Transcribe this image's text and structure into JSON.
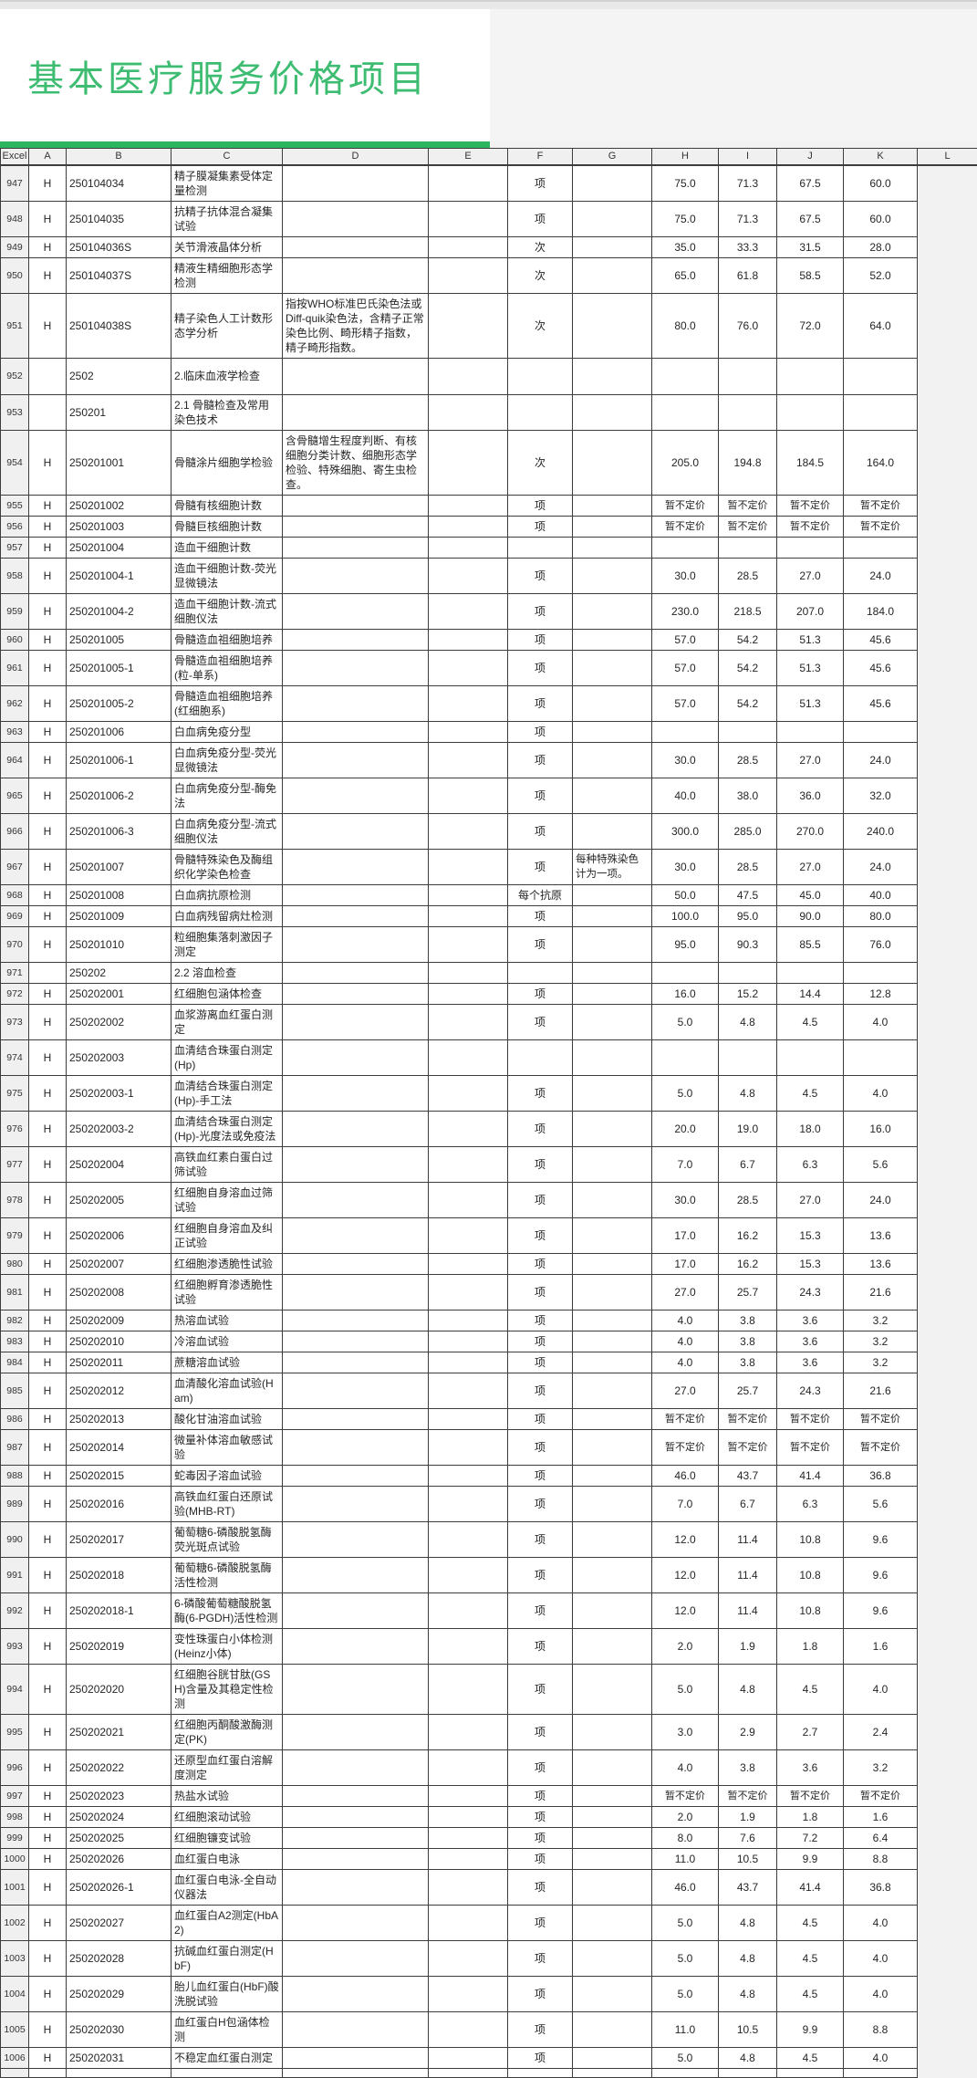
{
  "page": {
    "title": "基本医疗服务价格项目"
  },
  "table": {
    "columns": [
      "Excel",
      "A",
      "B",
      "C",
      "D",
      "E",
      "F",
      "G",
      "H",
      "I",
      "J",
      "K",
      "L"
    ],
    "row_fields_order": [
      "excel_row",
      "A",
      "B",
      "C",
      "D",
      "E",
      "F",
      "G",
      "H",
      "I",
      "J",
      "K"
    ],
    "unpriced_label": "暂不定价",
    "rows": [
      [
        "947",
        "H",
        "250104034",
        "精子膜凝集素受体定量检测",
        "",
        "",
        "项",
        "",
        "75.0",
        "71.3",
        "67.5",
        "60.0"
      ],
      [
        "948",
        "H",
        "250104035",
        "抗精子抗体混合凝集试验",
        "",
        "",
        "项",
        "",
        "75.0",
        "71.3",
        "67.5",
        "60.0"
      ],
      [
        "949",
        "H",
        "250104036S",
        "关节滑液晶体分析",
        "",
        "",
        "次",
        "",
        "35.0",
        "33.3",
        "31.5",
        "28.0"
      ],
      [
        "950",
        "H",
        "250104037S",
        "精液生精细胞形态学检测",
        "",
        "",
        "次",
        "",
        "65.0",
        "61.8",
        "58.5",
        "52.0"
      ],
      [
        "951",
        "H",
        "250104038S",
        "精子染色人工计数形态学分析",
        "指按WHO标准巴氏染色法或Diff-quik染色法，含精子正常染色比例、畸形精子指数，精子畸形指数。",
        "",
        "次",
        "",
        "80.0",
        "76.0",
        "72.0",
        "64.0"
      ],
      [
        "952",
        "",
        "2502",
        "2.临床血液学检查",
        "",
        "",
        "",
        "",
        "",
        "",
        "",
        ""
      ],
      [
        "953",
        "",
        "250201",
        "2.1 骨髓检查及常用染色技术",
        "",
        "",
        "",
        "",
        "",
        "",
        "",
        ""
      ],
      [
        "954",
        "H",
        "250201001",
        "骨髓涂片细胞学检验",
        "含骨髓增生程度判断、有核细胞分类计数、细胞形态学检验、特殊细胞、寄生虫检查。",
        "",
        "次",
        "",
        "205.0",
        "194.8",
        "184.5",
        "164.0"
      ],
      [
        "955",
        "H",
        "250201002",
        "骨髓有核细胞计数",
        "",
        "",
        "项",
        "",
        "暂不定价",
        "暂不定价",
        "暂不定价",
        "暂不定价"
      ],
      [
        "956",
        "H",
        "250201003",
        "骨髓巨核细胞计数",
        "",
        "",
        "项",
        "",
        "暂不定价",
        "暂不定价",
        "暂不定价",
        "暂不定价"
      ],
      [
        "957",
        "H",
        "250201004",
        "造血干细胞计数",
        "",
        "",
        "",
        "",
        "",
        "",
        "",
        ""
      ],
      [
        "958",
        "H",
        "250201004-1",
        "造血干细胞计数-荧光显微镜法",
        "",
        "",
        "项",
        "",
        "30.0",
        "28.5",
        "27.0",
        "24.0"
      ],
      [
        "959",
        "H",
        "250201004-2",
        "造血干细胞计数-流式细胞仪法",
        "",
        "",
        "项",
        "",
        "230.0",
        "218.5",
        "207.0",
        "184.0"
      ],
      [
        "960",
        "H",
        "250201005",
        "骨髓造血祖细胞培养",
        "",
        "",
        "项",
        "",
        "57.0",
        "54.2",
        "51.3",
        "45.6"
      ],
      [
        "961",
        "H",
        "250201005-1",
        "骨髓造血祖细胞培养(粒-单系)",
        "",
        "",
        "项",
        "",
        "57.0",
        "54.2",
        "51.3",
        "45.6"
      ],
      [
        "962",
        "H",
        "250201005-2",
        "骨髓造血祖细胞培养(红细胞系)",
        "",
        "",
        "项",
        "",
        "57.0",
        "54.2",
        "51.3",
        "45.6"
      ],
      [
        "963",
        "H",
        "250201006",
        "白血病免疫分型",
        "",
        "",
        "项",
        "",
        "",
        "",
        "",
        ""
      ],
      [
        "964",
        "H",
        "250201006-1",
        "白血病免疫分型-荧光显微镜法",
        "",
        "",
        "项",
        "",
        "30.0",
        "28.5",
        "27.0",
        "24.0"
      ],
      [
        "965",
        "H",
        "250201006-2",
        "白血病免疫分型-酶免法",
        "",
        "",
        "项",
        "",
        "40.0",
        "38.0",
        "36.0",
        "32.0"
      ],
      [
        "966",
        "H",
        "250201006-3",
        "白血病免疫分型-流式细胞仪法",
        "",
        "",
        "项",
        "",
        "300.0",
        "285.0",
        "270.0",
        "240.0"
      ],
      [
        "967",
        "H",
        "250201007",
        "骨髓特殊染色及酶组织化学染色检查",
        "",
        "",
        "项",
        "每种特殊染色计为一项。",
        "30.0",
        "28.5",
        "27.0",
        "24.0"
      ],
      [
        "968",
        "H",
        "250201008",
        "白血病抗原检测",
        "",
        "",
        "每个抗原",
        "",
        "50.0",
        "47.5",
        "45.0",
        "40.0"
      ],
      [
        "969",
        "H",
        "250201009",
        "白血病残留病灶检测",
        "",
        "",
        "项",
        "",
        "100.0",
        "95.0",
        "90.0",
        "80.0"
      ],
      [
        "970",
        "H",
        "250201010",
        "粒细胞集落刺激因子测定",
        "",
        "",
        "项",
        "",
        "95.0",
        "90.3",
        "85.5",
        "76.0"
      ],
      [
        "971",
        "",
        "250202",
        "2.2 溶血检查",
        "",
        "",
        "",
        "",
        "",
        "",
        "",
        ""
      ],
      [
        "972",
        "H",
        "250202001",
        "红细胞包涵体检查",
        "",
        "",
        "项",
        "",
        "16.0",
        "15.2",
        "14.4",
        "12.8"
      ],
      [
        "973",
        "H",
        "250202002",
        "血浆游离血红蛋白测定",
        "",
        "",
        "项",
        "",
        "5.0",
        "4.8",
        "4.5",
        "4.0"
      ],
      [
        "974",
        "H",
        "250202003",
        "血清结合珠蛋白测定(Hp)",
        "",
        "",
        "",
        "",
        "",
        "",
        "",
        ""
      ],
      [
        "975",
        "H",
        "250202003-1",
        "血清结合珠蛋白测定(Hp)-手工法",
        "",
        "",
        "项",
        "",
        "5.0",
        "4.8",
        "4.5",
        "4.0"
      ],
      [
        "976",
        "H",
        "250202003-2",
        "血清结合珠蛋白测定(Hp)-光度法或免疫法",
        "",
        "",
        "项",
        "",
        "20.0",
        "19.0",
        "18.0",
        "16.0"
      ],
      [
        "977",
        "H",
        "250202004",
        "高铁血红素白蛋白过筛试验",
        "",
        "",
        "项",
        "",
        "7.0",
        "6.7",
        "6.3",
        "5.6"
      ],
      [
        "978",
        "H",
        "250202005",
        "红细胞自身溶血过筛试验",
        "",
        "",
        "项",
        "",
        "30.0",
        "28.5",
        "27.0",
        "24.0"
      ],
      [
        "979",
        "H",
        "250202006",
        "红细胞自身溶血及纠正试验",
        "",
        "",
        "项",
        "",
        "17.0",
        "16.2",
        "15.3",
        "13.6"
      ],
      [
        "980",
        "H",
        "250202007",
        "红细胞渗透脆性试验",
        "",
        "",
        "项",
        "",
        "17.0",
        "16.2",
        "15.3",
        "13.6"
      ],
      [
        "981",
        "H",
        "250202008",
        "红细胞孵育渗透脆性试验",
        "",
        "",
        "项",
        "",
        "27.0",
        "25.7",
        "24.3",
        "21.6"
      ],
      [
        "982",
        "H",
        "250202009",
        "热溶血试验",
        "",
        "",
        "项",
        "",
        "4.0",
        "3.8",
        "3.6",
        "3.2"
      ],
      [
        "983",
        "H",
        "250202010",
        "冷溶血试验",
        "",
        "",
        "项",
        "",
        "4.0",
        "3.8",
        "3.6",
        "3.2"
      ],
      [
        "984",
        "H",
        "250202011",
        "蔗糖溶血试验",
        "",
        "",
        "项",
        "",
        "4.0",
        "3.8",
        "3.6",
        "3.2"
      ],
      [
        "985",
        "H",
        "250202012",
        "血清酸化溶血试验(Ham)",
        "",
        "",
        "项",
        "",
        "27.0",
        "25.7",
        "24.3",
        "21.6"
      ],
      [
        "986",
        "H",
        "250202013",
        "酸化甘油溶血试验",
        "",
        "",
        "项",
        "",
        "暂不定价",
        "暂不定价",
        "暂不定价",
        "暂不定价"
      ],
      [
        "987",
        "H",
        "250202014",
        "微量补体溶血敏感试验",
        "",
        "",
        "项",
        "",
        "暂不定价",
        "暂不定价",
        "暂不定价",
        "暂不定价"
      ],
      [
        "988",
        "H",
        "250202015",
        "蛇毒因子溶血试验",
        "",
        "",
        "项",
        "",
        "46.0",
        "43.7",
        "41.4",
        "36.8"
      ],
      [
        "989",
        "H",
        "250202016",
        "高铁血红蛋白还原试验(MHB-RT)",
        "",
        "",
        "项",
        "",
        "7.0",
        "6.7",
        "6.3",
        "5.6"
      ],
      [
        "990",
        "H",
        "250202017",
        "葡萄糖6-磷酸脱氢酶荧光斑点试验",
        "",
        "",
        "项",
        "",
        "12.0",
        "11.4",
        "10.8",
        "9.6"
      ],
      [
        "991",
        "H",
        "250202018",
        "葡萄糖6-磷酸脱氢酶活性检测",
        "",
        "",
        "项",
        "",
        "12.0",
        "11.4",
        "10.8",
        "9.6"
      ],
      [
        "992",
        "H",
        "250202018-1",
        "6-磷酸葡萄糖酸脱氢酶(6-PGDH)活性检测",
        "",
        "",
        "项",
        "",
        "12.0",
        "11.4",
        "10.8",
        "9.6"
      ],
      [
        "993",
        "H",
        "250202019",
        "变性珠蛋白小体检测(Heinz小体)",
        "",
        "",
        "项",
        "",
        "2.0",
        "1.9",
        "1.8",
        "1.6"
      ],
      [
        "994",
        "H",
        "250202020",
        "红细胞谷胱甘肽(GSH)含量及其稳定性检测",
        "",
        "",
        "项",
        "",
        "5.0",
        "4.8",
        "4.5",
        "4.0"
      ],
      [
        "995",
        "H",
        "250202021",
        "红细胞丙酮酸激酶测定(PK)",
        "",
        "",
        "项",
        "",
        "3.0",
        "2.9",
        "2.7",
        "2.4"
      ],
      [
        "996",
        "H",
        "250202022",
        "还原型血红蛋白溶解度测定",
        "",
        "",
        "项",
        "",
        "4.0",
        "3.8",
        "3.6",
        "3.2"
      ],
      [
        "997",
        "H",
        "250202023",
        "热盐水试验",
        "",
        "",
        "项",
        "",
        "暂不定价",
        "暂不定价",
        "暂不定价",
        "暂不定价"
      ],
      [
        "998",
        "H",
        "250202024",
        "红细胞滚动试验",
        "",
        "",
        "项",
        "",
        "2.0",
        "1.9",
        "1.8",
        "1.6"
      ],
      [
        "999",
        "H",
        "250202025",
        "红细胞镰变试验",
        "",
        "",
        "项",
        "",
        "8.0",
        "7.6",
        "7.2",
        "6.4"
      ],
      [
        "1000",
        "H",
        "250202026",
        "血红蛋白电泳",
        "",
        "",
        "项",
        "",
        "11.0",
        "10.5",
        "9.9",
        "8.8"
      ],
      [
        "1001",
        "H",
        "250202026-1",
        "血红蛋白电泳-全自动仪器法",
        "",
        "",
        "项",
        "",
        "46.0",
        "43.7",
        "41.4",
        "36.8"
      ],
      [
        "1002",
        "H",
        "250202027",
        "血红蛋白A2测定(HbA2)",
        "",
        "",
        "项",
        "",
        "5.0",
        "4.8",
        "4.5",
        "4.0"
      ],
      [
        "1003",
        "H",
        "250202028",
        "抗碱血红蛋白测定(HbF)",
        "",
        "",
        "项",
        "",
        "5.0",
        "4.8",
        "4.5",
        "4.0"
      ],
      [
        "1004",
        "H",
        "250202029",
        "胎儿血红蛋白(HbF)酸洗脱试验",
        "",
        "",
        "项",
        "",
        "5.0",
        "4.8",
        "4.5",
        "4.0"
      ],
      [
        "1005",
        "H",
        "250202030",
        "血红蛋白H包涵体检测",
        "",
        "",
        "项",
        "",
        "11.0",
        "10.5",
        "9.9",
        "8.8"
      ],
      [
        "1006",
        "H",
        "250202031",
        "不稳定血红蛋白测定",
        "",
        "",
        "项",
        "",
        "5.0",
        "4.8",
        "4.5",
        "4.0"
      ]
    ]
  }
}
